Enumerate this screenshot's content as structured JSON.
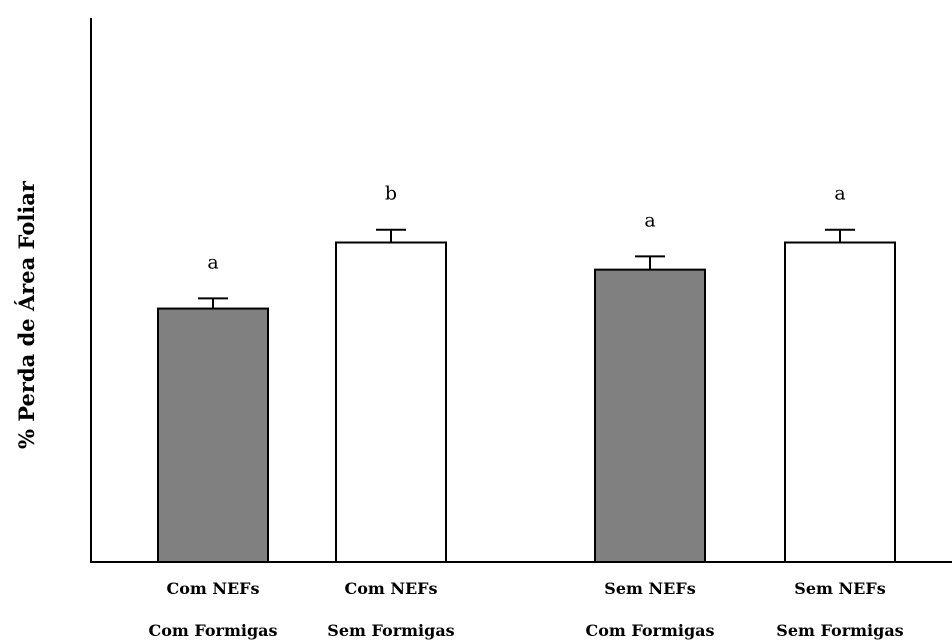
{
  "chart_data": {
    "type": "bar",
    "ylabel": "% Perda de Área Foliar",
    "xlabel": "",
    "title": "",
    "ylim": [
      0,
      100
    ],
    "grid": false,
    "categories": [
      {
        "line1": "Com NEFs",
        "line2": "Com Formigas"
      },
      {
        "line1": "Com NEFs",
        "line2": "Sem Formigas"
      },
      {
        "line1": "Sem NEFs",
        "line2": "Com Formigas"
      },
      {
        "line1": "Sem NEFs",
        "line2": "Sem Formigas"
      }
    ],
    "values": [
      49.5,
      62.4,
      57.1,
      62.4
    ],
    "errors": [
      2.0,
      2.5,
      2.6,
      2.5
    ],
    "significance": [
      "a",
      "b",
      "a",
      "a"
    ],
    "colors": [
      "#808080",
      "#ffffff",
      "#808080",
      "#ffffff"
    ]
  }
}
